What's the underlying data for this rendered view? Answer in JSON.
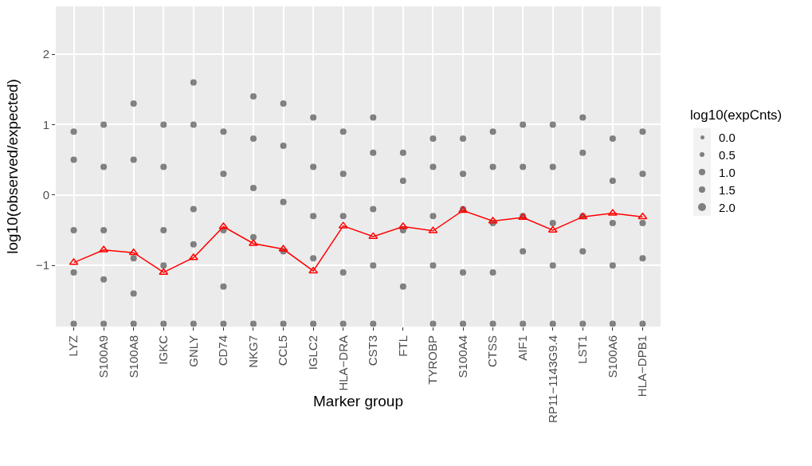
{
  "chart_data": {
    "type": "line",
    "xlabel": "Marker group",
    "ylabel": "log10(observed/expected)",
    "legend_title": "log10(expCnts)",
    "categories": [
      "LYZ",
      "S100A9",
      "S100A8",
      "IGKC",
      "GNLY",
      "CD74",
      "NKG7",
      "CCL5",
      "IGLC2",
      "HLA−DRA",
      "CST3",
      "FTL",
      "TYROBP",
      "S100A4",
      "CTSS",
      "AIF1",
      "RP11−1143G9.4",
      "LST1",
      "S100A6",
      "HLA−DPB1"
    ],
    "ylim": [
      -1.87,
      2.68
    ],
    "yticks": [
      {
        "value": -1,
        "label": "−1"
      },
      0,
      1,
      2
    ],
    "grid": true,
    "annotations": [
      "0.0",
      "0.5",
      "1.0",
      "1.5",
      "2.0"
    ],
    "series": [
      {
        "type": "scatter",
        "color": "#333333",
        "marker": "circle",
        "x": [
          "LYZ",
          "LYZ",
          "LYZ",
          "LYZ",
          "LYZ",
          "S100A9",
          "S100A9",
          "S100A9",
          "S100A9",
          "S100A9",
          "S100A8",
          "S100A8",
          "S100A8",
          "S100A8",
          "S100A8",
          "IGKC",
          "IGKC",
          "IGKC",
          "IGKC",
          "IGKC",
          "GNLY",
          "GNLY",
          "GNLY",
          "GNLY",
          "GNLY",
          "CD74",
          "CD74",
          "CD74",
          "CD74",
          "CD74",
          "NKG7",
          "NKG7",
          "NKG7",
          "NKG7",
          "NKG7",
          "CCL5",
          "CCL5",
          "CCL5",
          "CCL5",
          "CCL5",
          "IGLC2",
          "IGLC2",
          "IGLC2",
          "IGLC2",
          "IGLC2",
          "HLA−DRA",
          "HLA−DRA",
          "HLA−DRA",
          "HLA−DRA",
          "HLA−DRA",
          "CST3",
          "CST3",
          "CST3",
          "CST3",
          "CST3",
          "FTL",
          "FTL",
          "FTL",
          "FTL",
          "TYROBP",
          "TYROBP",
          "TYROBP",
          "TYROBP",
          "TYROBP",
          "S100A4",
          "S100A4",
          "S100A4",
          "S100A4",
          "S100A4",
          "CTSS",
          "CTSS",
          "CTSS",
          "CTSS",
          "CTSS",
          "AIF1",
          "AIF1",
          "AIF1",
          "AIF1",
          "AIF1",
          "RP11−1143G9.4",
          "RP11−1143G9.4",
          "RP11−1143G9.4",
          "RP11−1143G9.4",
          "RP11−1143G9.4",
          "LST1",
          "LST1",
          "LST1",
          "LST1",
          "LST1",
          "S100A6",
          "S100A6",
          "S100A6",
          "S100A6",
          "S100A6",
          "HLA−DPB1",
          "HLA−DPB1",
          "HLA−DPB1",
          "HLA−DPB1",
          "HLA−DPB1"
        ],
        "values": [
          0.9,
          0.5,
          -0.5,
          -1.1,
          -1.83,
          1.0,
          0.4,
          -0.5,
          -1.2,
          -1.83,
          1.3,
          0.5,
          -0.9,
          -1.4,
          -1.83,
          1.0,
          0.4,
          -0.5,
          -1.0,
          -1.83,
          1.6,
          1.0,
          -0.2,
          -0.7,
          -1.83,
          0.9,
          0.3,
          -0.5,
          -1.3,
          -1.83,
          1.4,
          0.8,
          0.1,
          -0.6,
          -1.83,
          1.3,
          0.7,
          -0.1,
          -0.8,
          -1.83,
          1.1,
          0.4,
          -0.3,
          -0.9,
          -1.83,
          0.9,
          0.3,
          -0.3,
          -1.1,
          -1.83,
          1.1,
          0.6,
          -0.2,
          -1.0,
          -1.83,
          0.6,
          0.2,
          -0.5,
          -1.3,
          0.8,
          0.4,
          -0.3,
          -1.0,
          -1.83,
          0.8,
          0.3,
          -0.2,
          -1.1,
          -1.83,
          0.9,
          0.4,
          -0.4,
          -1.1,
          -1.83,
          1.0,
          0.4,
          -0.3,
          -0.8,
          -1.83,
          1.0,
          0.4,
          -0.4,
          -1.0,
          -1.83,
          1.1,
          0.6,
          -0.3,
          -0.8,
          -1.83,
          0.8,
          0.2,
          -0.4,
          -1.0,
          -1.83,
          0.9,
          0.3,
          -0.4,
          -0.9,
          -1.83
        ]
      },
      {
        "color": "#ff0000",
        "marker": "triangle",
        "values": [
          -0.96,
          -0.78,
          -0.82,
          -1.1,
          -0.89,
          -0.45,
          -0.69,
          -0.77,
          -1.08,
          -0.44,
          -0.59,
          -0.45,
          -0.51,
          -0.22,
          -0.37,
          -0.32,
          -0.5,
          -0.31,
          -0.26,
          -0.31
        ]
      }
    ]
  }
}
